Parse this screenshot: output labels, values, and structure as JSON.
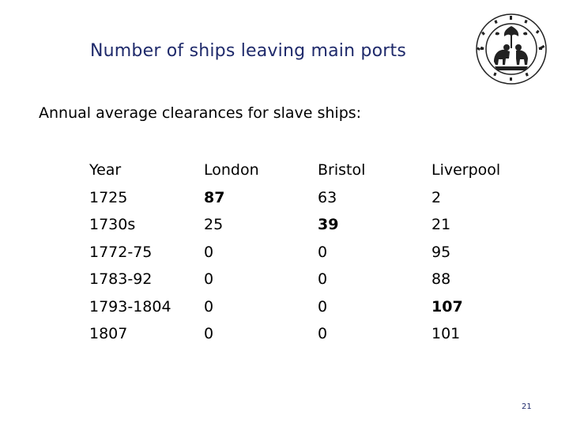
{
  "slide": {
    "title": "Number of ships leaving main ports",
    "subtitle": "Annual average clearances for slave ships:",
    "page_number": "21",
    "logo_icon": "school-crest-seal-icon"
  },
  "table": {
    "header": [
      "Year",
      "London",
      "Bristol",
      "Liverpool"
    ],
    "rows": [
      {
        "year": "1725",
        "london": "87",
        "bristol": "63",
        "liverpool": "2"
      },
      {
        "year": "1730s",
        "london": "25",
        "bristol": "39",
        "liverpool": "21"
      },
      {
        "year": "1772-75",
        "london": "0",
        "bristol": "0",
        "liverpool": "95"
      },
      {
        "year": "1783-92",
        "london": "0",
        "bristol": "0",
        "liverpool": "88"
      },
      {
        "year": "1793-1804",
        "london": "0",
        "bristol": "0",
        "liverpool": "107"
      },
      {
        "year": "1807",
        "london": "0",
        "bristol": "0",
        "liverpool": "101"
      }
    ],
    "bold_cells": [
      "0.london",
      "1.bristol",
      "4.liverpool"
    ]
  },
  "colors": {
    "title": "#1f2a6b",
    "text": "#000000",
    "background": "#ffffff"
  }
}
